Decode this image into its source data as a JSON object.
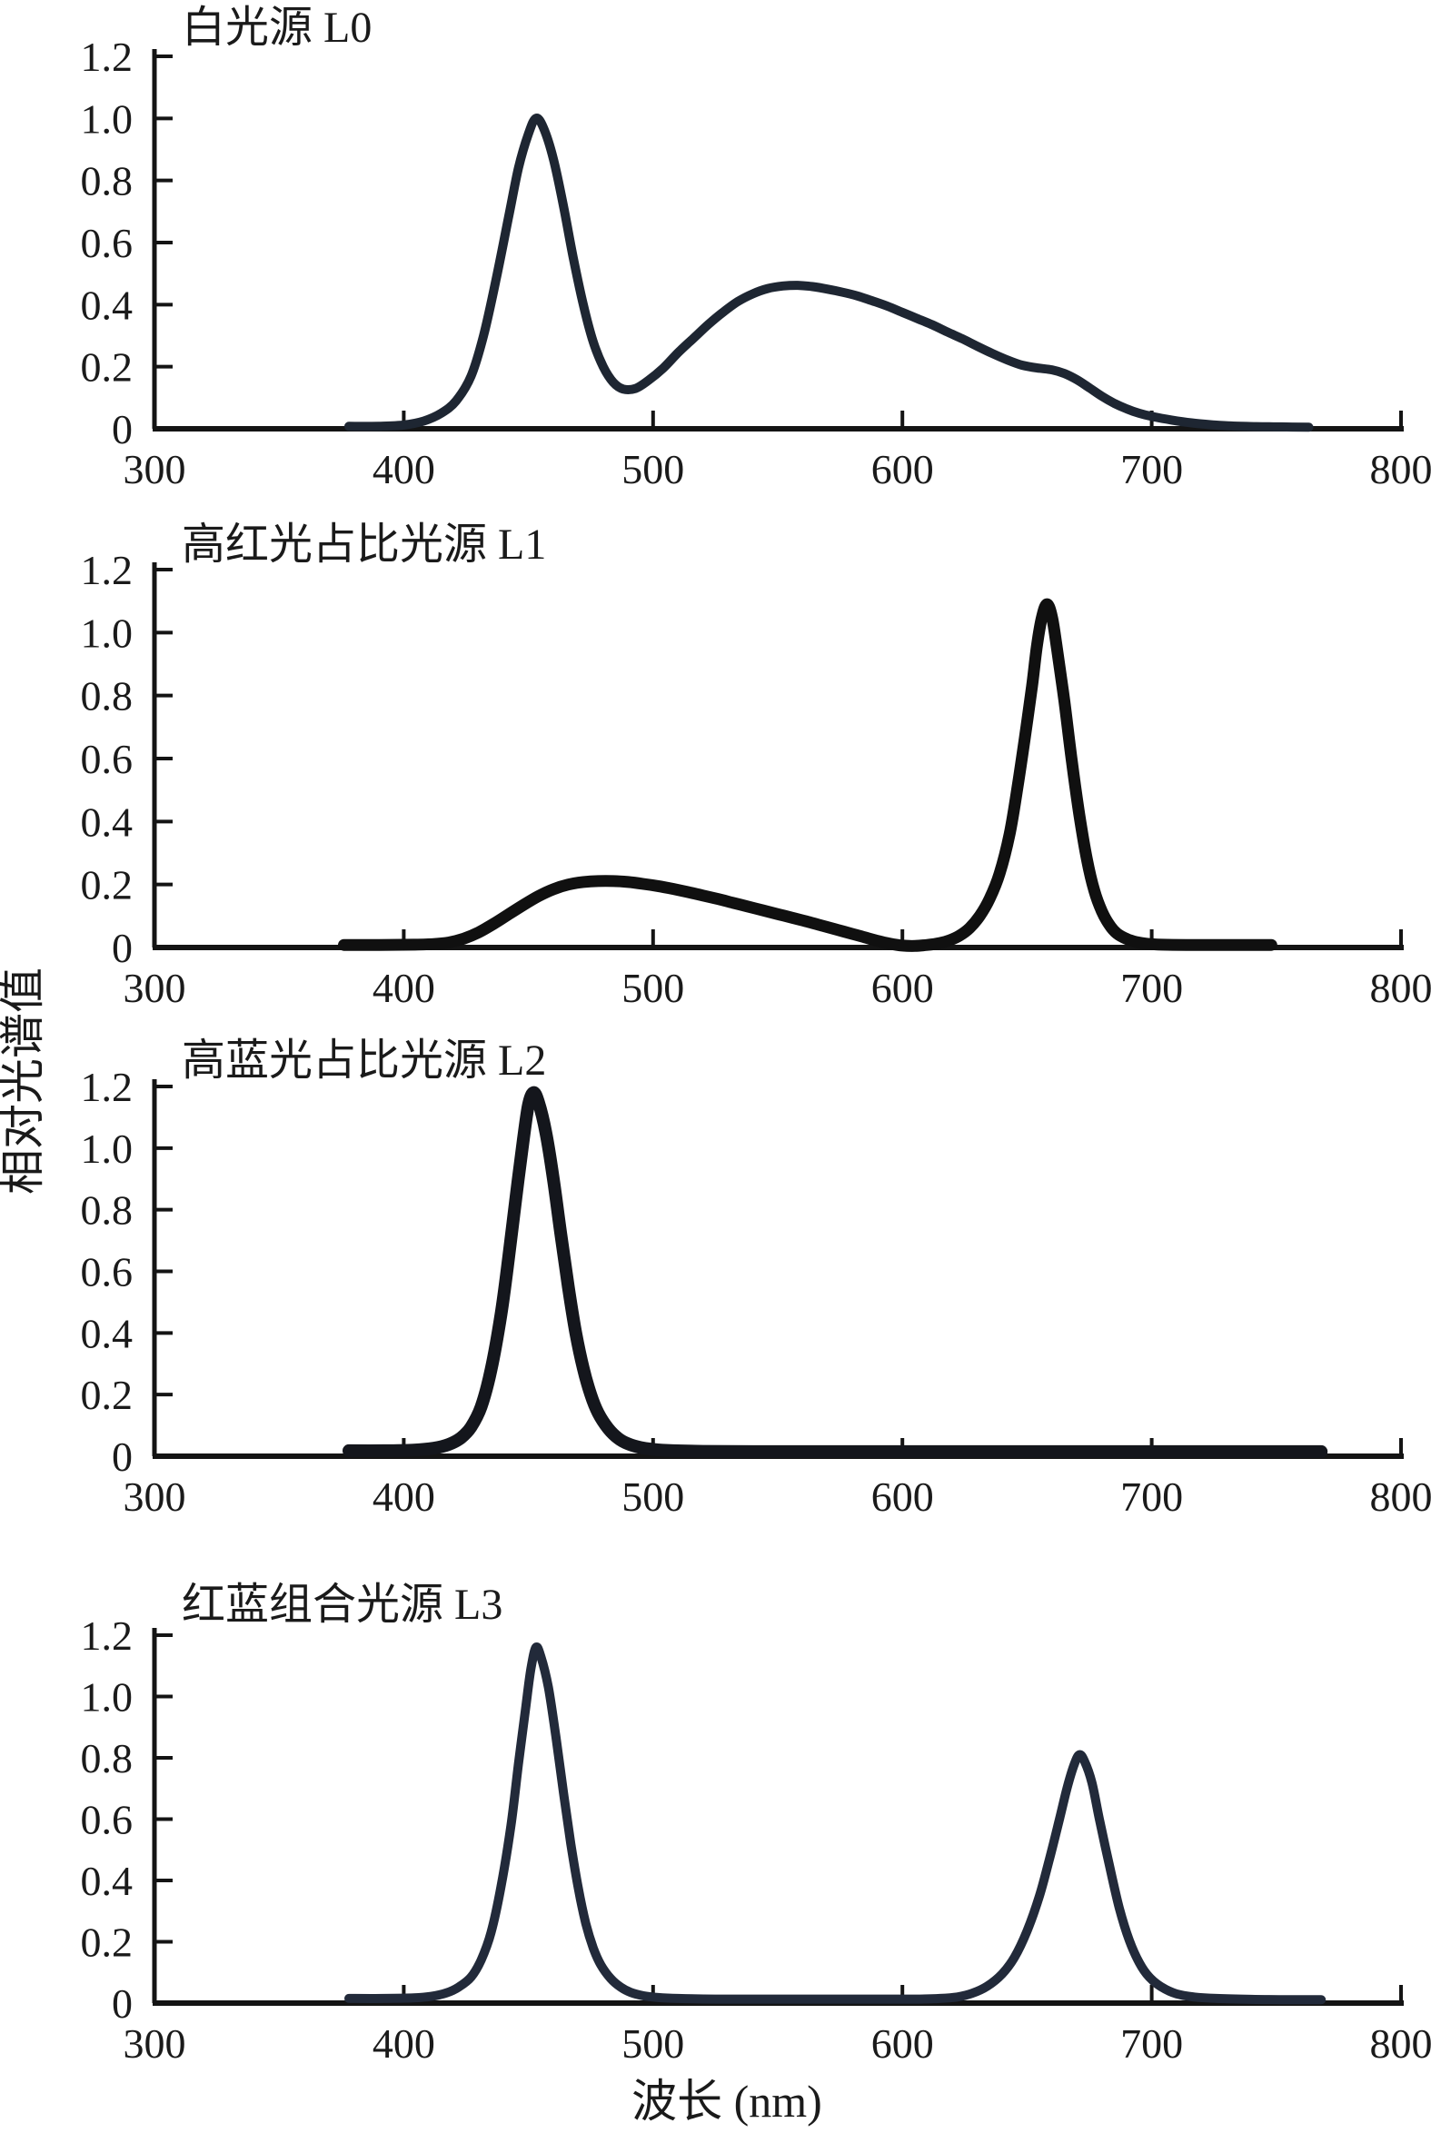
{
  "figure": {
    "x_label": "波长 (nm)",
    "y_label": "相对光谱值",
    "background_color": "#ffffff",
    "axis_color": "#141414",
    "text_color": "#1a1a1a"
  },
  "chart_data": [
    {
      "type": "line",
      "title": "白光源 L0",
      "series_name": "L0",
      "xlim": [
        300,
        800
      ],
      "ylim": [
        0,
        1.2
      ],
      "x_ticks": [
        300,
        400,
        500,
        600,
        700,
        800
      ],
      "y_ticks": [
        0,
        0.2,
        0.4,
        0.6,
        0.8,
        1.0,
        1.2
      ],
      "y_tick_labels": [
        "0",
        "0.2",
        "0.4",
        "0.6",
        "0.8",
        "1.0",
        "1.2"
      ],
      "grid": false,
      "legend": "none",
      "line_color": "#1e2632",
      "line_width": 10,
      "peaks": [
        {
          "x": 453,
          "y": 1.0
        },
        {
          "x": 558,
          "y": 0.46
        }
      ],
      "points": [
        [
          378,
          0.008
        ],
        [
          390,
          0.008
        ],
        [
          400,
          0.012
        ],
        [
          408,
          0.025
        ],
        [
          415,
          0.05
        ],
        [
          421,
          0.09
        ],
        [
          427,
          0.17
        ],
        [
          432,
          0.3
        ],
        [
          437,
          0.48
        ],
        [
          442,
          0.68
        ],
        [
          446,
          0.84
        ],
        [
          450,
          0.95
        ],
        [
          453,
          1.0
        ],
        [
          456,
          0.97
        ],
        [
          460,
          0.87
        ],
        [
          464,
          0.72
        ],
        [
          468,
          0.55
        ],
        [
          472,
          0.4
        ],
        [
          476,
          0.28
        ],
        [
          480,
          0.2
        ],
        [
          484,
          0.15
        ],
        [
          488,
          0.128
        ],
        [
          493,
          0.13
        ],
        [
          498,
          0.155
        ],
        [
          504,
          0.195
        ],
        [
          510,
          0.245
        ],
        [
          516,
          0.29
        ],
        [
          522,
          0.335
        ],
        [
          528,
          0.375
        ],
        [
          534,
          0.41
        ],
        [
          540,
          0.435
        ],
        [
          546,
          0.452
        ],
        [
          552,
          0.46
        ],
        [
          558,
          0.462
        ],
        [
          564,
          0.458
        ],
        [
          570,
          0.45
        ],
        [
          576,
          0.44
        ],
        [
          582,
          0.428
        ],
        [
          588,
          0.412
        ],
        [
          594,
          0.395
        ],
        [
          600,
          0.375
        ],
        [
          606,
          0.355
        ],
        [
          612,
          0.335
        ],
        [
          618,
          0.312
        ],
        [
          624,
          0.29
        ],
        [
          630,
          0.266
        ],
        [
          636,
          0.243
        ],
        [
          642,
          0.222
        ],
        [
          648,
          0.205
        ],
        [
          654,
          0.196
        ],
        [
          660,
          0.19
        ],
        [
          665,
          0.178
        ],
        [
          670,
          0.158
        ],
        [
          675,
          0.132
        ],
        [
          680,
          0.105
        ],
        [
          685,
          0.082
        ],
        [
          690,
          0.064
        ],
        [
          695,
          0.05
        ],
        [
          700,
          0.04
        ],
        [
          708,
          0.028
        ],
        [
          716,
          0.019
        ],
        [
          724,
          0.013
        ],
        [
          732,
          0.009
        ],
        [
          742,
          0.007
        ],
        [
          752,
          0.006
        ],
        [
          763,
          0.005
        ]
      ]
    },
    {
      "type": "line",
      "title": "高红光占比光源 L1",
      "series_name": "L1",
      "xlim": [
        300,
        800
      ],
      "ylim": [
        0,
        1.2
      ],
      "x_ticks": [
        300,
        400,
        500,
        600,
        700,
        800
      ],
      "y_ticks": [
        0,
        0.2,
        0.4,
        0.6,
        0.8,
        1.0,
        1.2
      ],
      "y_tick_labels": [
        "0",
        "0.2",
        "0.4",
        "0.6",
        "0.8",
        "1.0",
        "1.2"
      ],
      "grid": false,
      "legend": "none",
      "line_color": "#101010",
      "line_width": 13,
      "peaks": [
        {
          "x": 478,
          "y": 0.21
        },
        {
          "x": 658,
          "y": 1.09
        }
      ],
      "points": [
        [
          376,
          0.008
        ],
        [
          390,
          0.008
        ],
        [
          404,
          0.009
        ],
        [
          412,
          0.011
        ],
        [
          418,
          0.016
        ],
        [
          424,
          0.028
        ],
        [
          430,
          0.048
        ],
        [
          436,
          0.075
        ],
        [
          442,
          0.105
        ],
        [
          448,
          0.135
        ],
        [
          454,
          0.163
        ],
        [
          460,
          0.185
        ],
        [
          466,
          0.2
        ],
        [
          472,
          0.208
        ],
        [
          478,
          0.211
        ],
        [
          484,
          0.211
        ],
        [
          490,
          0.208
        ],
        [
          496,
          0.202
        ],
        [
          502,
          0.195
        ],
        [
          508,
          0.186
        ],
        [
          514,
          0.176
        ],
        [
          520,
          0.165
        ],
        [
          526,
          0.154
        ],
        [
          532,
          0.142
        ],
        [
          538,
          0.13
        ],
        [
          544,
          0.118
        ],
        [
          550,
          0.106
        ],
        [
          556,
          0.094
        ],
        [
          562,
          0.082
        ],
        [
          568,
          0.069
        ],
        [
          574,
          0.056
        ],
        [
          580,
          0.043
        ],
        [
          585,
          0.032
        ],
        [
          590,
          0.021
        ],
        [
          595,
          0.012
        ],
        [
          600,
          0.006
        ],
        [
          605,
          0.005
        ],
        [
          610,
          0.008
        ],
        [
          615,
          0.014
        ],
        [
          619,
          0.023
        ],
        [
          623,
          0.038
        ],
        [
          627,
          0.062
        ],
        [
          631,
          0.1
        ],
        [
          635,
          0.155
        ],
        [
          639,
          0.235
        ],
        [
          643,
          0.36
        ],
        [
          646,
          0.5
        ],
        [
          649,
          0.66
        ],
        [
          652,
          0.83
        ],
        [
          654,
          0.96
        ],
        [
          656,
          1.05
        ],
        [
          658,
          1.09
        ],
        [
          660,
          1.05
        ],
        [
          662,
          0.95
        ],
        [
          665,
          0.78
        ],
        [
          668,
          0.59
        ],
        [
          671,
          0.42
        ],
        [
          674,
          0.28
        ],
        [
          677,
          0.18
        ],
        [
          680,
          0.115
        ],
        [
          683,
          0.072
        ],
        [
          686,
          0.045
        ],
        [
          690,
          0.027
        ],
        [
          694,
          0.017
        ],
        [
          698,
          0.012
        ],
        [
          704,
          0.009
        ],
        [
          714,
          0.008
        ],
        [
          730,
          0.008
        ],
        [
          748,
          0.008
        ]
      ]
    },
    {
      "type": "line",
      "title": "高蓝光占比光源 L2",
      "series_name": "L2",
      "xlim": [
        300,
        800
      ],
      "ylim": [
        0,
        1.2
      ],
      "x_ticks": [
        300,
        400,
        500,
        600,
        700,
        800
      ],
      "y_ticks": [
        0,
        0.2,
        0.4,
        0.6,
        0.8,
        1.0,
        1.2
      ],
      "y_tick_labels": [
        "0",
        "0.2",
        "0.4",
        "0.6",
        "0.8",
        "1.0",
        "1.2"
      ],
      "grid": false,
      "legend": "none",
      "line_color": "#14161c",
      "line_width": 14,
      "peaks": [
        {
          "x": 451,
          "y": 1.18
        }
      ],
      "points": [
        [
          378,
          0.018
        ],
        [
          392,
          0.018
        ],
        [
          404,
          0.02
        ],
        [
          412,
          0.026
        ],
        [
          418,
          0.038
        ],
        [
          423,
          0.06
        ],
        [
          427,
          0.095
        ],
        [
          431,
          0.16
        ],
        [
          435,
          0.28
        ],
        [
          439,
          0.46
        ],
        [
          442,
          0.64
        ],
        [
          445,
          0.84
        ],
        [
          448,
          1.03
        ],
        [
          450,
          1.14
        ],
        [
          452,
          1.18
        ],
        [
          454,
          1.15
        ],
        [
          457,
          1.05
        ],
        [
          460,
          0.9
        ],
        [
          463,
          0.72
        ],
        [
          466,
          0.55
        ],
        [
          469,
          0.4
        ],
        [
          472,
          0.285
        ],
        [
          475,
          0.2
        ],
        [
          478,
          0.14
        ],
        [
          482,
          0.09
        ],
        [
          486,
          0.058
        ],
        [
          490,
          0.04
        ],
        [
          495,
          0.028
        ],
        [
          500,
          0.022
        ],
        [
          508,
          0.018
        ],
        [
          520,
          0.016
        ],
        [
          540,
          0.015
        ],
        [
          570,
          0.015
        ],
        [
          600,
          0.015
        ],
        [
          630,
          0.015
        ],
        [
          660,
          0.015
        ],
        [
          690,
          0.015
        ],
        [
          720,
          0.015
        ],
        [
          745,
          0.015
        ],
        [
          768,
          0.015
        ]
      ]
    },
    {
      "type": "line",
      "title": "红蓝组合光源 L3",
      "series_name": "L3",
      "xlim": [
        300,
        800
      ],
      "ylim": [
        0,
        1.2
      ],
      "x_ticks": [
        300,
        400,
        500,
        600,
        700,
        800
      ],
      "y_ticks": [
        0,
        0.2,
        0.4,
        0.6,
        0.8,
        1.0,
        1.2
      ],
      "y_tick_labels": [
        "0",
        "0.2",
        "0.4",
        "0.6",
        "0.8",
        "1.0",
        "1.2"
      ],
      "grid": false,
      "legend": "none",
      "line_color": "#222a3a",
      "line_width": 10,
      "peaks": [
        {
          "x": 453,
          "y": 1.16
        },
        {
          "x": 671,
          "y": 0.81
        }
      ],
      "points": [
        [
          378,
          0.015
        ],
        [
          392,
          0.015
        ],
        [
          404,
          0.017
        ],
        [
          411,
          0.022
        ],
        [
          417,
          0.033
        ],
        [
          422,
          0.052
        ],
        [
          427,
          0.085
        ],
        [
          431,
          0.14
        ],
        [
          435,
          0.23
        ],
        [
          439,
          0.38
        ],
        [
          443,
          0.58
        ],
        [
          446,
          0.78
        ],
        [
          449,
          0.97
        ],
        [
          451,
          1.09
        ],
        [
          453,
          1.16
        ],
        [
          455,
          1.13
        ],
        [
          458,
          1.03
        ],
        [
          461,
          0.87
        ],
        [
          464,
          0.69
        ],
        [
          467,
          0.52
        ],
        [
          470,
          0.375
        ],
        [
          473,
          0.26
        ],
        [
          476,
          0.18
        ],
        [
          479,
          0.125
        ],
        [
          483,
          0.08
        ],
        [
          487,
          0.052
        ],
        [
          491,
          0.035
        ],
        [
          496,
          0.024
        ],
        [
          502,
          0.018
        ],
        [
          510,
          0.015
        ],
        [
          525,
          0.013
        ],
        [
          545,
          0.013
        ],
        [
          565,
          0.013
        ],
        [
          585,
          0.013
        ],
        [
          605,
          0.013
        ],
        [
          615,
          0.015
        ],
        [
          622,
          0.02
        ],
        [
          628,
          0.032
        ],
        [
          634,
          0.055
        ],
        [
          640,
          0.095
        ],
        [
          645,
          0.15
        ],
        [
          650,
          0.235
        ],
        [
          655,
          0.35
        ],
        [
          659,
          0.47
        ],
        [
          663,
          0.6
        ],
        [
          666,
          0.7
        ],
        [
          669,
          0.78
        ],
        [
          671,
          0.81
        ],
        [
          673,
          0.79
        ],
        [
          676,
          0.72
        ],
        [
          679,
          0.6
        ],
        [
          683,
          0.45
        ],
        [
          687,
          0.31
        ],
        [
          691,
          0.205
        ],
        [
          695,
          0.132
        ],
        [
          699,
          0.085
        ],
        [
          704,
          0.052
        ],
        [
          710,
          0.03
        ],
        [
          717,
          0.02
        ],
        [
          726,
          0.015
        ],
        [
          740,
          0.012
        ],
        [
          755,
          0.011
        ],
        [
          768,
          0.011
        ]
      ]
    }
  ]
}
